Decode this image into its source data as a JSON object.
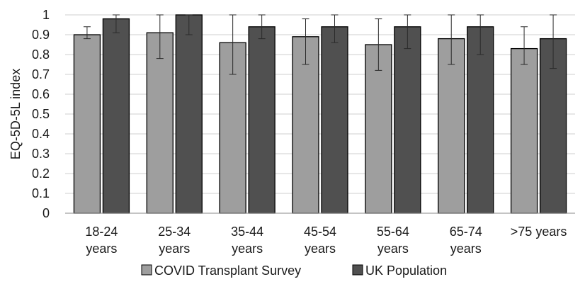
{
  "chart_data": {
    "type": "bar",
    "title": "",
    "xlabel": "",
    "ylabel": "EQ-5D-5L index",
    "ylim": [
      0,
      1
    ],
    "y_ticks": [
      "0",
      "0.1",
      "0.2",
      "0.3",
      "0.4",
      "0.5",
      "0.6",
      "0.7",
      "0.8",
      "0.9",
      "1"
    ],
    "y_tick_values": [
      0,
      0.1,
      0.2,
      0.3,
      0.4,
      0.5,
      0.6,
      0.7,
      0.8,
      0.9,
      1
    ],
    "categories": [
      [
        "18-24",
        "years"
      ],
      [
        "25-34",
        "years"
      ],
      [
        "35-44",
        "years"
      ],
      [
        "45-54",
        "years"
      ],
      [
        "55-64",
        "years"
      ],
      [
        "65-74",
        "years"
      ],
      [
        ">75 years",
        ""
      ]
    ],
    "grid": true,
    "legend_position": "bottom",
    "series": [
      {
        "name": "COVID Transplant Survey",
        "color": "#9e9e9e",
        "values": [
          0.9,
          0.91,
          0.86,
          0.89,
          0.85,
          0.88,
          0.83
        ],
        "error_low": [
          0.88,
          0.78,
          0.7,
          0.75,
          0.72,
          0.75,
          0.75
        ],
        "error_high": [
          0.94,
          1.0,
          1.0,
          0.98,
          0.98,
          1.0,
          0.94
        ]
      },
      {
        "name": "UK Population",
        "color": "#505050",
        "values": [
          0.98,
          1.0,
          0.94,
          0.94,
          0.94,
          0.94,
          0.88
        ],
        "error_low": [
          0.91,
          0.9,
          0.88,
          0.86,
          0.83,
          0.8,
          0.73
        ],
        "error_high": [
          1.0,
          1.0,
          1.0,
          1.0,
          1.0,
          1.0,
          1.0
        ]
      }
    ]
  }
}
